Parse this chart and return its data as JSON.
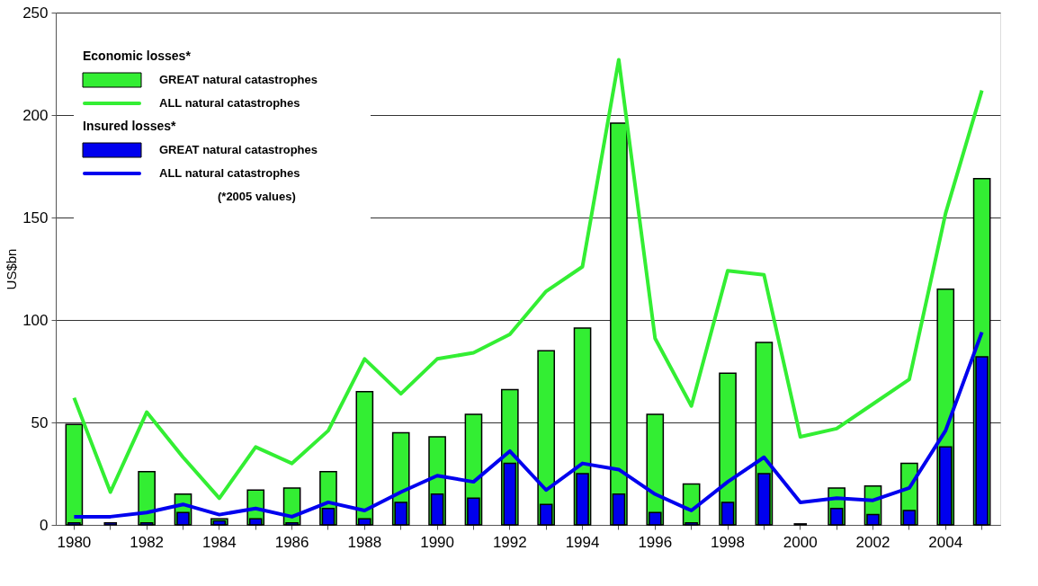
{
  "chart_data": {
    "type": "bar",
    "categories": [
      "1980",
      null,
      "1982",
      null,
      "1984",
      null,
      "1986",
      null,
      "1988",
      null,
      "1990",
      null,
      "1992",
      null,
      "1994",
      null,
      "1996",
      null,
      "1998",
      null,
      "2000",
      null,
      "2002",
      null,
      "2004",
      null
    ],
    "ylabel": "US$bn",
    "series": [
      {
        "name": "GREAT natural catastrophes",
        "color": "#33ee33",
        "values": [
          49,
          null,
          26,
          15,
          3,
          17,
          18,
          26,
          65,
          45,
          43,
          54,
          66,
          85,
          96,
          196,
          54,
          20,
          74,
          89,
          null,
          18,
          19,
          30,
          115,
          169
        ]
      },
      {
        "name": "ALL natural catastrophes",
        "type": "line",
        "color": "#33ee33",
        "values": [
          62,
          16,
          55,
          33,
          13,
          38,
          30,
          46,
          81,
          64,
          81,
          84,
          93,
          114,
          126,
          227,
          91,
          58,
          124,
          122,
          43,
          47,
          59,
          71,
          152,
          212
        ]
      },
      {
        "name": "GREAT natural catastrophes",
        "color": "#0000ee",
        "values": [
          1,
          1,
          1,
          6,
          2,
          3,
          1,
          8,
          3,
          11,
          15,
          13,
          30,
          10,
          25,
          15,
          6,
          1,
          11,
          25,
          0.5,
          8,
          5,
          7,
          38,
          82
        ]
      },
      {
        "name": "ALL natural catastrophes",
        "type": "line",
        "color": "#0000ee",
        "values": [
          4,
          4,
          6,
          10,
          5,
          8,
          4,
          11,
          7,
          16,
          24,
          21,
          36,
          17,
          30,
          27,
          15,
          7,
          21,
          33,
          11,
          13,
          12,
          18,
          46,
          94
        ]
      }
    ],
    "ylim": [
      0,
      250
    ],
    "yticks": [
      0,
      50,
      100,
      150,
      200,
      250
    ],
    "grid": "y",
    "legend": "top left",
    "annotations": [
      "Economic losses*",
      "Insured losses*",
      "(*2005 values)"
    ]
  }
}
